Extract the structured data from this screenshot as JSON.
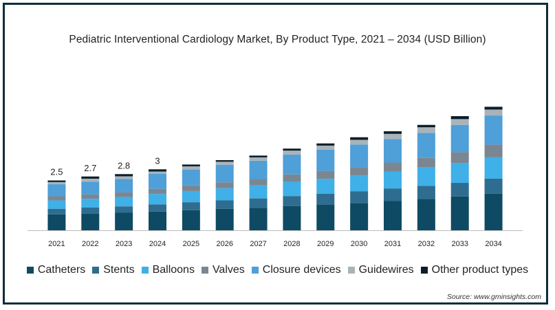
{
  "chart_data": {
    "type": "bar",
    "stacked": true,
    "title": "Pediatric Interventional Cardiology Market, By Product Type, 2021 – 2034 (USD Billion)",
    "xlabel": "",
    "ylabel": "",
    "ylim": [
      0,
      8.8
    ],
    "grid": false,
    "legend_position": "bottom",
    "categories": [
      "2021",
      "2022",
      "2023",
      "2024",
      "2025",
      "2026",
      "2027",
      "2028",
      "2029",
      "2030",
      "2031",
      "2032",
      "2033",
      "2034"
    ],
    "series": [
      {
        "name": "Catheters",
        "color": "#0e4a63",
        "values": [
          0.8,
          0.84,
          0.88,
          0.94,
          1.01,
          1.08,
          1.13,
          1.21,
          1.29,
          1.36,
          1.48,
          1.58,
          1.7,
          1.84
        ]
      },
      {
        "name": "Stents",
        "color": "#2e6d8f",
        "values": [
          0.28,
          0.3,
          0.32,
          0.36,
          0.4,
          0.42,
          0.47,
          0.51,
          0.54,
          0.59,
          0.62,
          0.65,
          0.68,
          0.75
        ]
      },
      {
        "name": "Balloons",
        "color": "#3fb0e8",
        "values": [
          0.42,
          0.44,
          0.47,
          0.52,
          0.56,
          0.61,
          0.65,
          0.71,
          0.75,
          0.8,
          0.85,
          0.92,
          1.0,
          1.07
        ]
      },
      {
        "name": "Valves",
        "color": "#7a8793",
        "values": [
          0.21,
          0.22,
          0.23,
          0.26,
          0.28,
          0.3,
          0.32,
          0.37,
          0.4,
          0.42,
          0.45,
          0.48,
          0.54,
          0.64
        ]
      },
      {
        "name": "Closure devices",
        "color": "#4f9fd8",
        "values": [
          0.6,
          0.64,
          0.68,
          0.75,
          0.8,
          0.87,
          0.92,
          1.0,
          1.06,
          1.13,
          1.18,
          1.26,
          1.37,
          1.46
        ]
      },
      {
        "name": "Guidewires",
        "color": "#a9b3ba",
        "values": [
          0.11,
          0.15,
          0.13,
          0.12,
          0.16,
          0.16,
          0.17,
          0.2,
          0.21,
          0.24,
          0.26,
          0.28,
          0.29,
          0.3
        ]
      },
      {
        "name": "Other product types",
        "color": "#0b1f2a",
        "values": [
          0.08,
          0.11,
          0.11,
          0.11,
          0.09,
          0.08,
          0.09,
          0.1,
          0.11,
          0.13,
          0.13,
          0.12,
          0.15,
          0.14
        ]
      }
    ],
    "data_labels": [
      {
        "category": "2021",
        "text": "2.5"
      },
      {
        "category": "2022",
        "text": "2.7"
      },
      {
        "category": "2023",
        "text": "2.8"
      },
      {
        "category": "2024",
        "text": "3"
      }
    ]
  },
  "source_text": "Source: www.gminsights.com"
}
